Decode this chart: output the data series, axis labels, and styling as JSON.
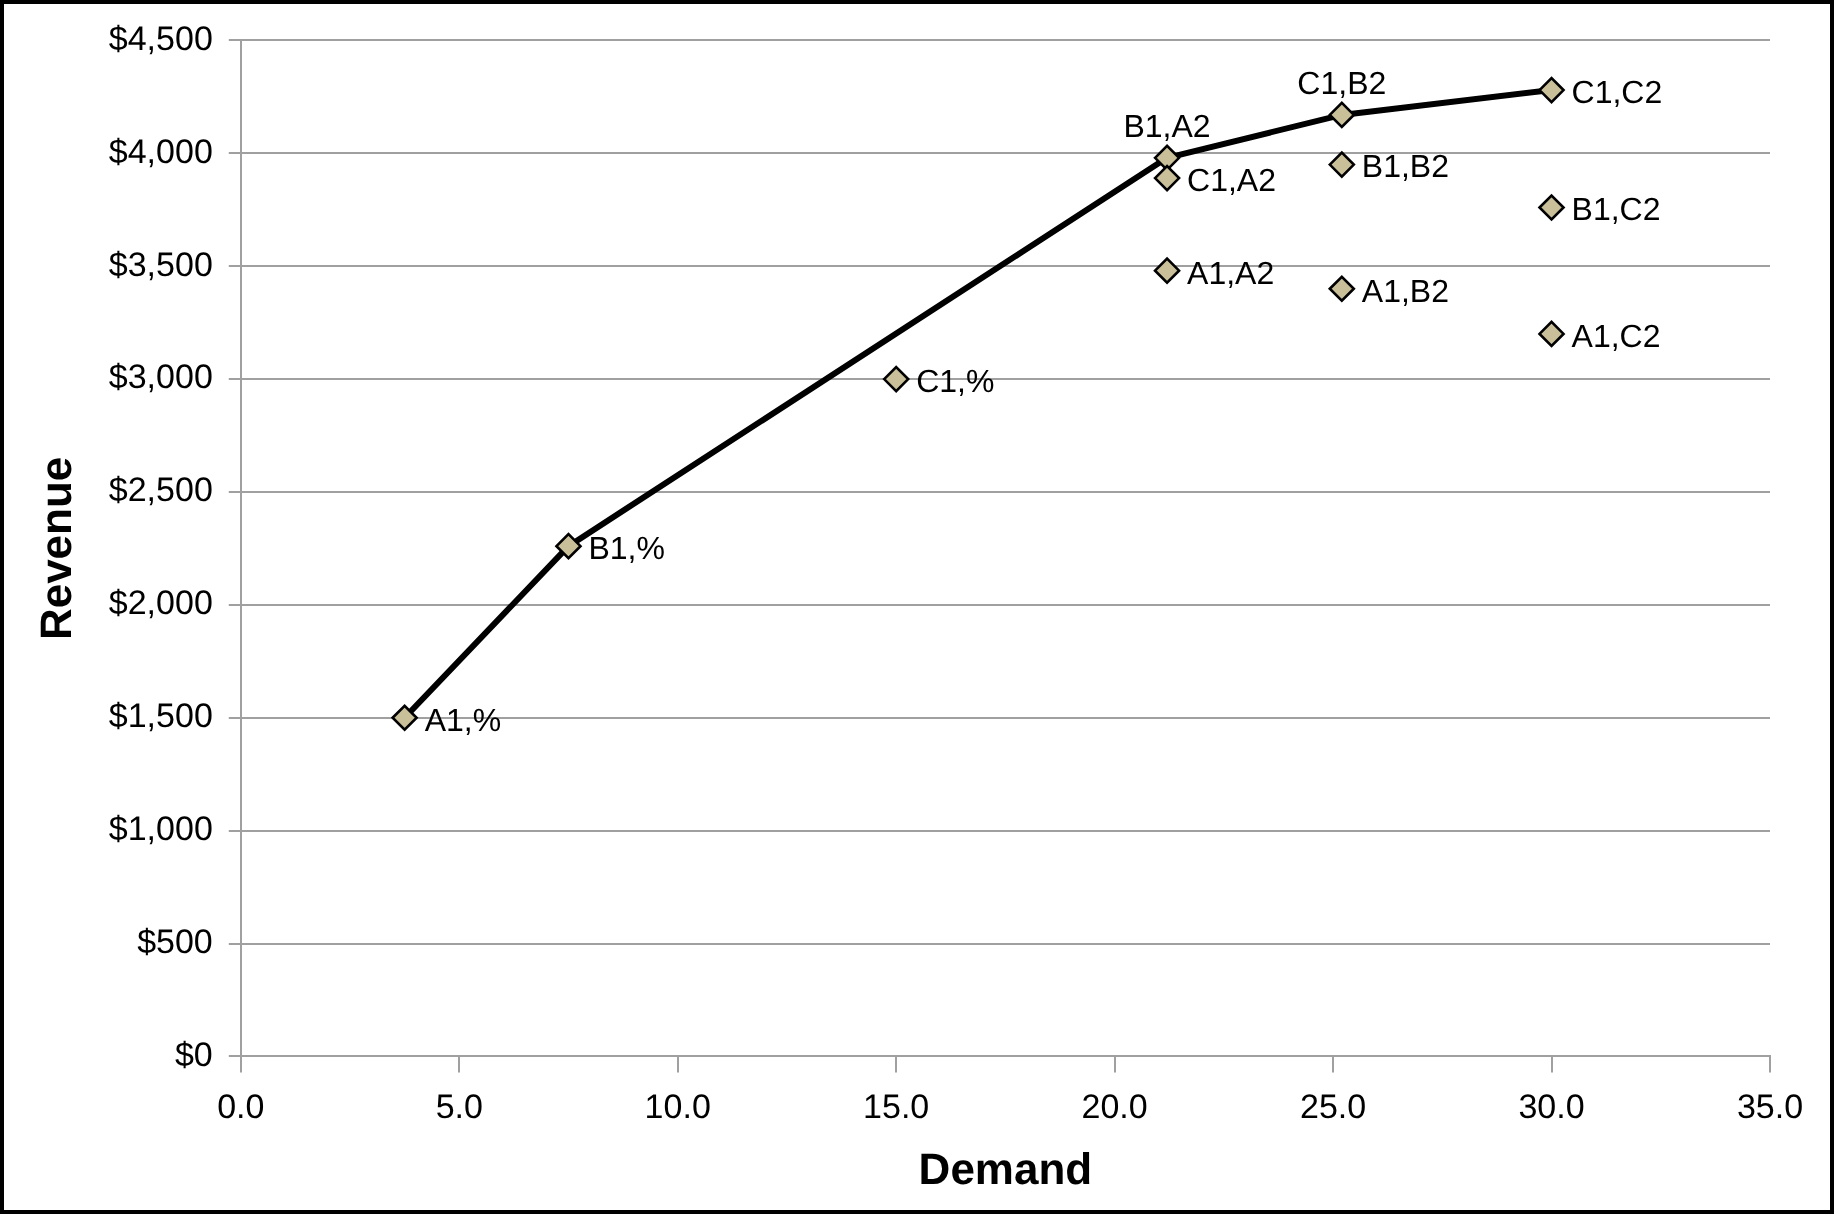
{
  "chart_data": {
    "type": "scatter",
    "xlabel": "Demand",
    "ylabel": "Revenue",
    "grid": "y",
    "legend": false,
    "marker": "diamond",
    "xlim": [
      0,
      35
    ],
    "xticks": [
      {
        "value": 0,
        "label": "0.0"
      },
      {
        "value": 5,
        "label": "5.0"
      },
      {
        "value": 10,
        "label": "10.0"
      },
      {
        "value": 15,
        "label": "15.0"
      },
      {
        "value": 20,
        "label": "20.0"
      },
      {
        "value": 25,
        "label": "25.0"
      },
      {
        "value": 30,
        "label": "30.0"
      },
      {
        "value": 35,
        "label": "35.0"
      }
    ],
    "ylim": [
      0,
      4500
    ],
    "yticks": [
      {
        "value": 0,
        "label": "$0"
      },
      {
        "value": 500,
        "label": "$500"
      },
      {
        "value": 1000,
        "label": "$1,000"
      },
      {
        "value": 1500,
        "label": "$1,500"
      },
      {
        "value": 2000,
        "label": "$2,000"
      },
      {
        "value": 2500,
        "label": "$2,500"
      },
      {
        "value": 3000,
        "label": "$3,000"
      },
      {
        "value": 3500,
        "label": "$3,500"
      },
      {
        "value": 4000,
        "label": "$4,000"
      },
      {
        "value": 4500,
        "label": "$4,500"
      }
    ],
    "series": [
      {
        "type": "line",
        "color": "#000000",
        "marker": "none",
        "line_style": "solid",
        "x": [
          3.75,
          7.5,
          21.2,
          25.2,
          30
        ],
        "values": [
          1500,
          2260,
          3980,
          4170,
          4280
        ]
      },
      {
        "color": "#c9c09a",
        "x": [
          3.75,
          7.5,
          15,
          21.2,
          21.2,
          21.2,
          25.2,
          25.2,
          25.2,
          30,
          30,
          30
        ],
        "values": [
          1500,
          2260,
          3000,
          3980,
          3890,
          3480,
          4170,
          3950,
          3400,
          4280,
          3760,
          3200
        ]
      }
    ],
    "annotations": [
      {
        "text": "A1,%",
        "x": 3.75,
        "y": 1500
      },
      {
        "text": "B1,%",
        "x": 7.5,
        "y": 2260
      },
      {
        "text": "C1,%",
        "x": 15,
        "y": 3000
      },
      {
        "text": "B1,A2",
        "x": 21.2,
        "y": 3980
      },
      {
        "text": "C1,A2",
        "x": 21.2,
        "y": 3890
      },
      {
        "text": "A1,A2",
        "x": 21.2,
        "y": 3480
      },
      {
        "text": "C1,B2",
        "x": 25.2,
        "y": 4170
      },
      {
        "text": "B1,B2",
        "x": 25.2,
        "y": 3950
      },
      {
        "text": "A1,B2",
        "x": 25.2,
        "y": 3400
      },
      {
        "text": "C1,C2",
        "x": 30,
        "y": 4280
      },
      {
        "text": "B1,C2",
        "x": 30,
        "y": 3760
      },
      {
        "text": "A1,C2",
        "x": 30,
        "y": 3200
      }
    ]
  }
}
